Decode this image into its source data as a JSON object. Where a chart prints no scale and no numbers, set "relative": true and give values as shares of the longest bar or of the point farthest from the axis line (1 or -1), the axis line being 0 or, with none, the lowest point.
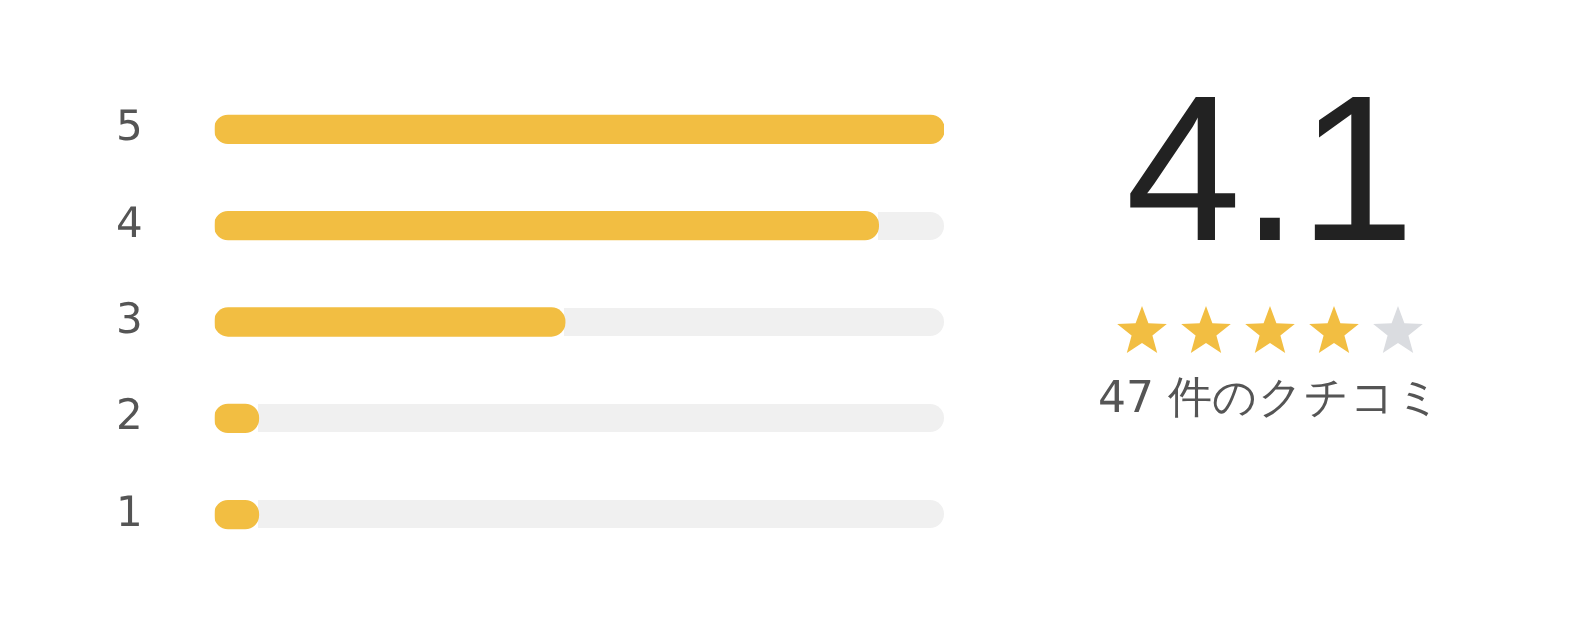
{
  "chart_data": {
    "type": "bar",
    "orientation": "horizontal",
    "relative": true,
    "categories": [
      "5",
      "4",
      "3",
      "2",
      "1"
    ],
    "values": [
      1,
      0.91,
      0.48,
      0.06,
      0.06
    ],
    "color": "#f2be42",
    "grid": false,
    "legend": false,
    "tick_labels": "y",
    "annotations": [
      "4.1",
      "47 件のクチコミ"
    ]
  }
}
